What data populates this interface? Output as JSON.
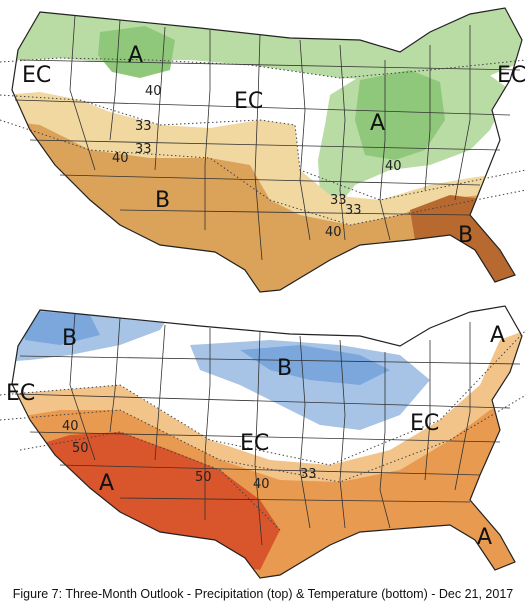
{
  "precipitation_map": {
    "labels": {
      "ec_west": "EC",
      "a_northwest": "A",
      "ec_central": "EC",
      "a_eastcentral": "A",
      "b_southwest": "B",
      "b_southeast": "B",
      "ec_northeast": "EC"
    },
    "contours": {
      "n40_northwest": "40",
      "n33_west_a": "33",
      "n33_west_b": "33",
      "n40_west": "40",
      "n40_east": "40",
      "n33_se_a": "33",
      "n33_se_b": "33",
      "n40_south": "40"
    },
    "colors": {
      "above_light": "#b9dba4",
      "above_mid": "#8fc87a",
      "below_light": "#f0d8a0",
      "below_mid": "#dba25a",
      "below_dark": "#b8692f"
    }
  },
  "temperature_map": {
    "labels": {
      "b_northwest": "B",
      "b_north": "B",
      "ec_west": "EC",
      "ec_central": "EC",
      "ec_east": "EC",
      "a_southwest": "A",
      "a_northeast": "A",
      "a_florida": "A"
    },
    "contours": {
      "n40_west": "40",
      "n50_west": "50",
      "n50_central": "50",
      "n40_central": "40",
      "n33_central": "33"
    },
    "colors": {
      "below_light": "#a7c4e6",
      "below_mid": "#7ba7dc",
      "above_light": "#f2c48a",
      "above_mid": "#e89a50",
      "above_dark": "#d9552c"
    }
  },
  "caption": "Figure 7: Three-Month Outlook - Precipitation (top) & Temperature (bottom) - Dec 21, 2017"
}
